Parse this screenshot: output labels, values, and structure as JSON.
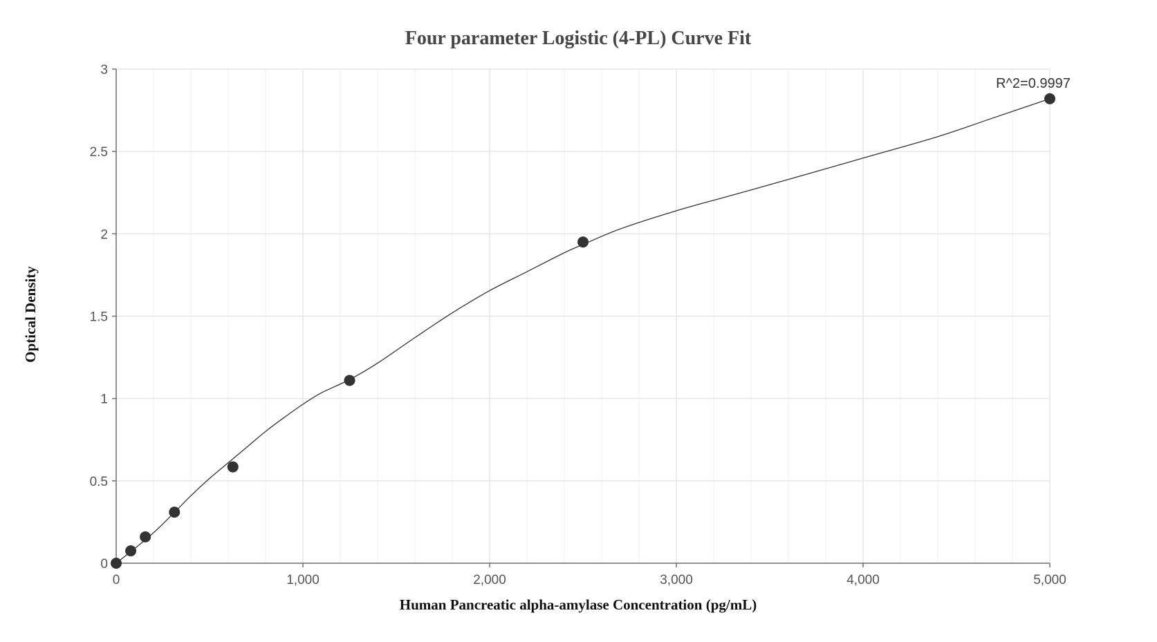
{
  "chart_data": {
    "type": "scatter",
    "title": "Four parameter Logistic (4-PL) Curve Fit",
    "xlabel": "Human Pancreatic alpha-amylase Concentration (pg/mL)",
    "ylabel": "Optical Density",
    "xlim": [
      0,
      5000
    ],
    "ylim": [
      0,
      3
    ],
    "x_ticks": [
      0,
      1000,
      2000,
      3000,
      4000,
      5000
    ],
    "x_tick_labels": [
      "0",
      "1,000",
      "2,000",
      "3,000",
      "4,000",
      "5,000"
    ],
    "y_ticks": [
      0,
      0.5,
      1,
      1.5,
      2,
      2.5,
      3
    ],
    "y_tick_labels": [
      "0",
      "0.5",
      "1",
      "1.5",
      "2",
      "2.5",
      "3"
    ],
    "grid": true,
    "series": [
      {
        "kind": "points",
        "x": [
          0,
          78,
          156,
          312,
          625,
          1250,
          2500,
          5000
        ],
        "y": [
          0,
          0.075,
          0.16,
          0.31,
          0.585,
          1.11,
          1.95,
          2.82
        ]
      },
      {
        "kind": "fit-curve",
        "x": [
          0,
          100,
          200,
          300,
          400,
          500,
          600,
          700,
          800,
          900,
          1000,
          1100,
          1250,
          1400,
          1600,
          1800,
          2000,
          2200,
          2400,
          2500,
          2700,
          3000,
          3300,
          3600,
          4000,
          4400,
          4700,
          5000
        ],
        "y": [
          0,
          0.09,
          0.185,
          0.295,
          0.41,
          0.515,
          0.61,
          0.705,
          0.8,
          0.885,
          0.965,
          1.035,
          1.115,
          1.215,
          1.37,
          1.52,
          1.655,
          1.77,
          1.885,
          1.935,
          2.03,
          2.14,
          2.235,
          2.33,
          2.46,
          2.59,
          2.705,
          2.82
        ]
      }
    ],
    "annotation": {
      "text": "R^2=0.9997",
      "x": 5000,
      "y": 2.82
    },
    "colors": {
      "points": "#333333",
      "curve": "#333333",
      "grid": "#e6e6ea",
      "axis": "#6e7079"
    }
  }
}
